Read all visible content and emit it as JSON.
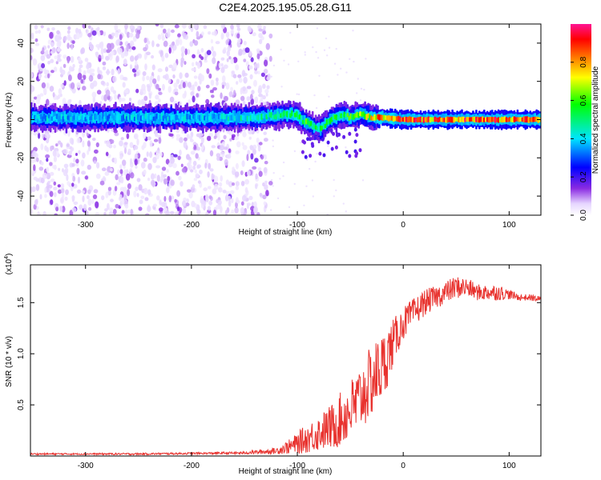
{
  "title": "C2E4.2025.195.05.28.G11",
  "chart_data": [
    {
      "type": "heatmap",
      "xlabel": "Height of straight line (km)",
      "ylabel": "Frequency (Hz)",
      "xlim": [
        -352,
        130
      ],
      "ylim": [
        -50,
        50
      ],
      "xticks": [
        -300,
        -200,
        -100,
        0,
        100
      ],
      "xtick_labels": [
        "-300",
        "-200",
        "-100",
        "0",
        "100"
      ],
      "yticks": [
        -40,
        -20,
        0,
        20,
        40
      ],
      "ytick_labels": [
        "-40",
        "-20",
        "0",
        "20",
        "40"
      ],
      "colorbar": {
        "label": "Normalized spectral amplitude",
        "range": [
          0,
          1
        ],
        "ticks": [
          0.0,
          0.2,
          0.4,
          0.6,
          0.8
        ],
        "tick_labels": [
          "0.0",
          "0.2",
          "0.4",
          "0.6",
          "0.8"
        ],
        "colormap": "rainbow (white-violet-blue-cyan-green-yellow-red-magenta)"
      },
      "ridge": {
        "description": "dominant frequency track vs height",
        "x": [
          -350,
          -300,
          -250,
          -200,
          -150,
          -120,
          -110,
          -100,
          -95,
          -90,
          -85,
          -80,
          -75,
          -70,
          -65,
          -60,
          -55,
          -50,
          -45,
          -40,
          -35,
          -30,
          -25,
          -20,
          0,
          50,
          100,
          130
        ],
        "y": [
          1,
          1,
          1,
          1,
          1,
          2,
          3,
          2,
          -1,
          -2,
          -4,
          -5,
          -3,
          0,
          1,
          2,
          2,
          1,
          2,
          3,
          2,
          1,
          1,
          1,
          0,
          0,
          0,
          0
        ],
        "amplitude": [
          0.4,
          0.4,
          0.4,
          0.4,
          0.45,
          0.5,
          0.55,
          0.55,
          0.6,
          0.6,
          0.6,
          0.55,
          0.55,
          0.55,
          0.6,
          0.6,
          0.6,
          0.6,
          0.65,
          0.7,
          0.7,
          0.8,
          0.85,
          0.85,
          0.9,
          0.9,
          0.9,
          0.85
        ]
      },
      "noise_region_x": [
        -352,
        -125
      ],
      "grid": false
    },
    {
      "type": "line",
      "xlabel": "Height of straight line (km)",
      "ylabel": "SNR (10 * v/v)",
      "y_multiplier": "(x10^4)",
      "xlim": [
        -352,
        130
      ],
      "ylim": [
        0,
        1.87
      ],
      "xticks": [
        -300,
        -200,
        -100,
        0,
        100
      ],
      "xtick_labels": [
        "-300",
        "-200",
        "-100",
        "0",
        "100"
      ],
      "yticks": [
        0.5,
        1.0,
        1.5
      ],
      "ytick_labels": [
        "0.5",
        "1.0",
        "1.5"
      ],
      "series": [
        {
          "color": "#e8322e",
          "x": [
            -352,
            -300,
            -250,
            -200,
            -150,
            -120,
            -105,
            -95,
            -85,
            -75,
            -65,
            -55,
            -45,
            -35,
            -25,
            -18,
            -14,
            -10,
            -5,
            0,
            10,
            20,
            30,
            40,
            50,
            60,
            70,
            80,
            90,
            100,
            110,
            120,
            130
          ],
          "y": [
            0.02,
            0.02,
            0.02,
            0.025,
            0.03,
            0.05,
            0.1,
            0.15,
            0.2,
            0.25,
            0.3,
            0.4,
            0.5,
            0.65,
            0.8,
            0.9,
            1.0,
            1.1,
            1.2,
            1.3,
            1.4,
            1.5,
            1.55,
            1.6,
            1.65,
            1.65,
            1.6,
            1.6,
            1.6,
            1.58,
            1.55,
            1.55,
            1.53
          ],
          "noise": [
            0.005,
            0.005,
            0.006,
            0.006,
            0.008,
            0.02,
            0.05,
            0.08,
            0.1,
            0.12,
            0.15,
            0.18,
            0.2,
            0.22,
            0.22,
            0.2,
            0.18,
            0.15,
            0.12,
            0.1,
            0.09,
            0.08,
            0.07,
            0.07,
            0.07,
            0.06,
            0.05,
            0.05,
            0.05,
            0.03,
            0.02,
            0.02,
            0.02
          ]
        }
      ],
      "grid": false
    }
  ]
}
